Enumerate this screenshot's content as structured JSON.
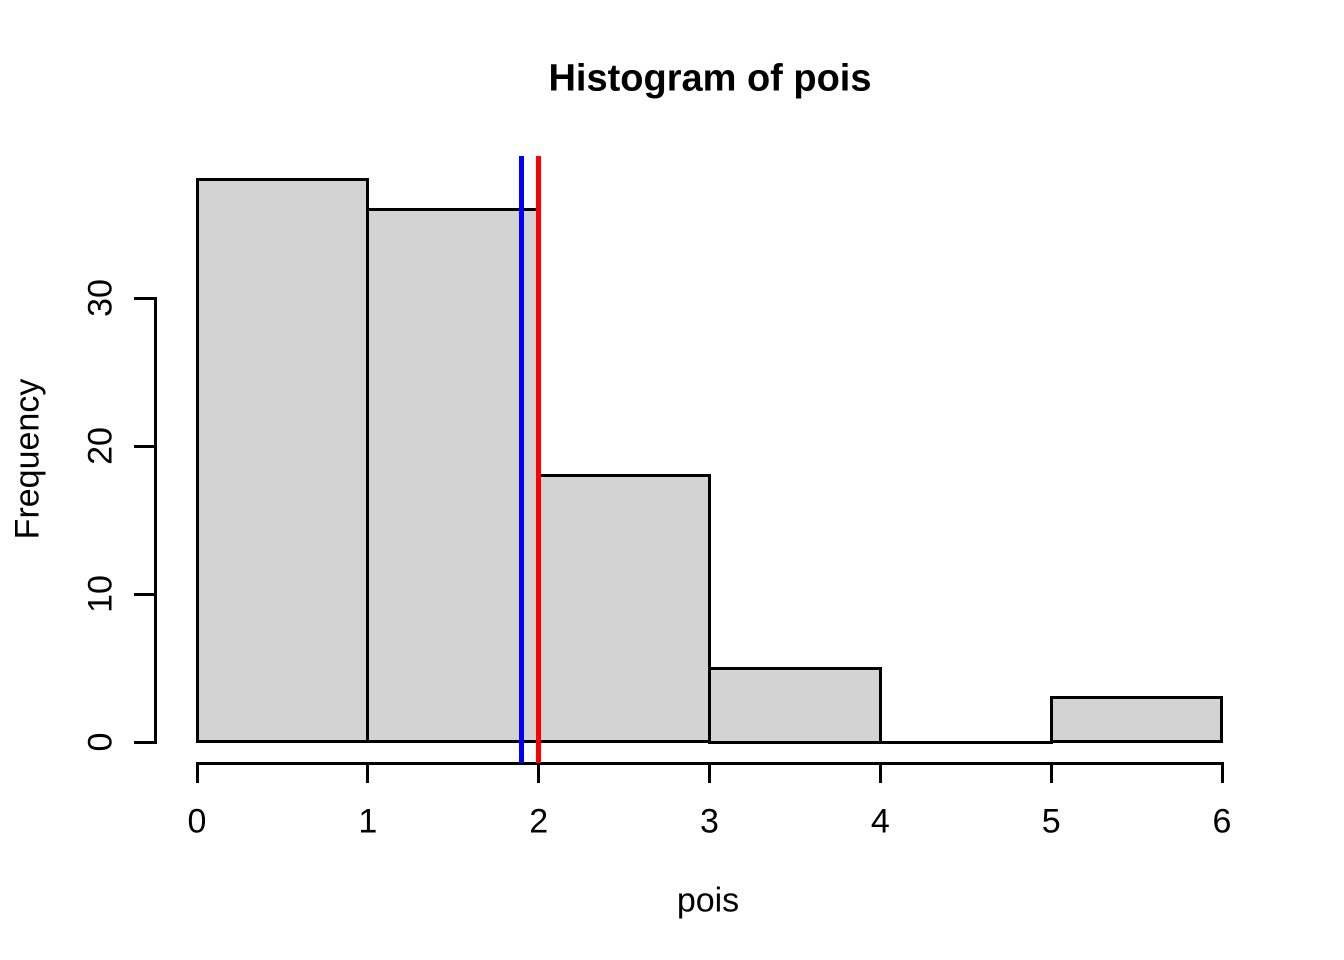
{
  "chart_data": {
    "type": "bar",
    "variant": "histogram",
    "title": "Histogram of pois",
    "xlabel": "pois",
    "ylabel": "Frequency",
    "bin_edges": [
      0,
      1,
      2,
      3,
      4,
      5,
      6
    ],
    "counts": [
      38,
      36,
      18,
      5,
      0,
      3
    ],
    "x_ticks": [
      0,
      1,
      2,
      3,
      4,
      5,
      6
    ],
    "y_ticks": [
      0,
      10,
      20,
      30
    ],
    "xlim": [
      0,
      6
    ],
    "grid": false,
    "legend": null,
    "background_color": "#FFFFFF",
    "bar_fill_color": "#D3D3D3",
    "bar_border_color": "#000000",
    "axis_color": "#000000",
    "vlines": [
      {
        "x": 1.9,
        "color": "#0000FF"
      },
      {
        "x": 2.0,
        "color": "#FF0000"
      }
    ]
  }
}
